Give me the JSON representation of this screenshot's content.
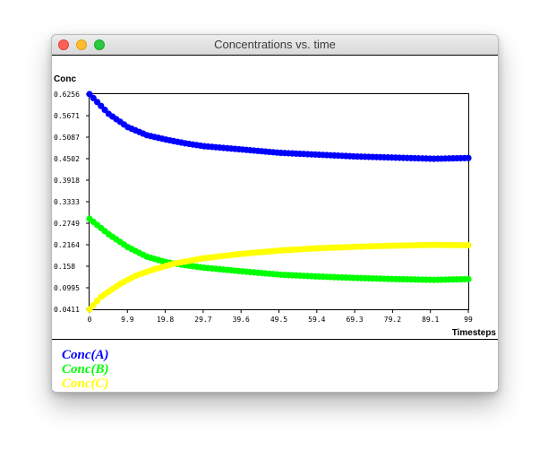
{
  "window": {
    "title": "Concentrations vs. time"
  },
  "colors": {
    "A": "#0000ff",
    "B": "#00ff00",
    "C": "#ffff00"
  },
  "legend": {
    "items": [
      "Conc(A)",
      "Conc(B)",
      "Conc(C)"
    ]
  },
  "chart_data": {
    "type": "scatter",
    "title": "",
    "xlabel": "Timesteps",
    "ylabel": "Conc",
    "xlim": [
      0,
      99
    ],
    "ylim": [
      0.0411,
      0.6256
    ],
    "x_ticks": [
      "0",
      "9.9",
      "19.8",
      "29.7",
      "39.6",
      "49.5",
      "59.4",
      "69.3",
      "79.2",
      "89.1",
      "99"
    ],
    "y_ticks": [
      "0.0411",
      "0.0995",
      "0.158",
      "0.2164",
      "0.2749",
      "0.3333",
      "0.3918",
      "0.4502",
      "0.5087",
      "0.5671",
      "0.6256"
    ],
    "grid": false,
    "legend_position": "below",
    "series": [
      {
        "name": "Conc(A)",
        "color": "#0000ff",
        "x": [
          0,
          5,
          10,
          15,
          20,
          25,
          30,
          40,
          50,
          60,
          70,
          80,
          90,
          99
        ],
        "values": [
          0.6256,
          0.572,
          0.536,
          0.514,
          0.502,
          0.492,
          0.484,
          0.475,
          0.466,
          0.461,
          0.456,
          0.453,
          0.45,
          0.452
        ]
      },
      {
        "name": "Conc(B)",
        "color": "#00ff00",
        "x": [
          0,
          5,
          10,
          15,
          20,
          25,
          30,
          40,
          50,
          60,
          70,
          80,
          90,
          99
        ],
        "values": [
          0.287,
          0.245,
          0.21,
          0.184,
          0.169,
          0.161,
          0.154,
          0.144,
          0.135,
          0.13,
          0.126,
          0.123,
          0.121,
          0.123
        ]
      },
      {
        "name": "Conc(C)",
        "color": "#ffff00",
        "x": [
          0,
          3,
          8,
          12,
          17,
          22,
          30,
          40,
          50,
          60,
          70,
          80,
          90,
          99
        ],
        "values": [
          0.0411,
          0.075,
          0.11,
          0.132,
          0.15,
          0.165,
          0.18,
          0.192,
          0.201,
          0.207,
          0.211,
          0.214,
          0.216,
          0.215
        ]
      }
    ]
  }
}
